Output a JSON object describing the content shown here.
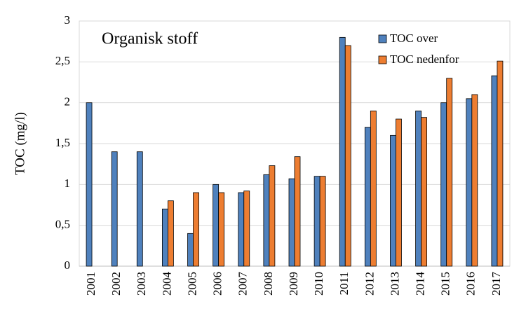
{
  "chart_data": {
    "type": "bar",
    "title": "Organisk stoff",
    "y_label": "TOC (mg/l)",
    "categories": [
      "2001",
      "2002",
      "2003",
      "2004",
      "2005",
      "2006",
      "2007",
      "2008",
      "2009",
      "2010",
      "2011",
      "2012",
      "2013",
      "2014",
      "2015",
      "2016",
      "2017"
    ],
    "series": [
      {
        "name": "TOC over",
        "color": "#4f81bd",
        "values": [
          2.0,
          1.4,
          1.4,
          0.7,
          0.4,
          1.0,
          0.9,
          1.12,
          1.07,
          1.1,
          2.8,
          1.7,
          1.6,
          1.9,
          2.0,
          2.05,
          2.33
        ]
      },
      {
        "name": "TOC nedenfor",
        "color": "#ed7d31",
        "values": [
          null,
          null,
          null,
          0.8,
          0.9,
          0.9,
          0.92,
          1.23,
          1.34,
          1.1,
          2.7,
          1.9,
          1.8,
          1.82,
          2.3,
          2.1,
          2.51
        ]
      }
    ],
    "ylim": [
      0,
      3
    ],
    "yticks": [
      0,
      {
        "value": 0.5,
        "label": "0,5"
      },
      1,
      {
        "value": 1.5,
        "label": "1,5"
      },
      2,
      {
        "value": 2.5,
        "label": "2,5"
      },
      3
    ],
    "grid": true,
    "legend": "top-right"
  }
}
